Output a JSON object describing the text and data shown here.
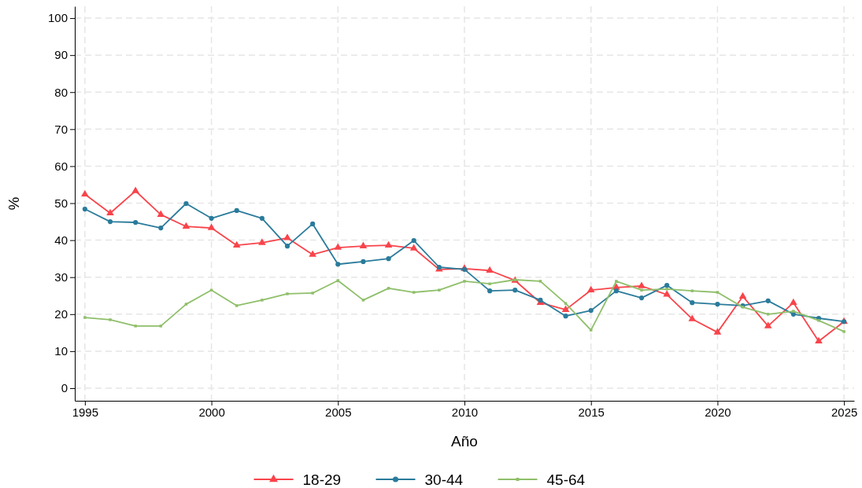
{
  "chart_data": {
    "type": "line",
    "xlabel": "Año",
    "ylabel": "%",
    "x": [
      1995,
      1996,
      1997,
      1998,
      1999,
      2000,
      2001,
      2002,
      2003,
      2004,
      2005,
      2006,
      2007,
      2008,
      2009,
      2010,
      2011,
      2012,
      2013,
      2014,
      2015,
      2016,
      2017,
      2018,
      2019,
      2020,
      2021,
      2022,
      2023,
      2024,
      2025
    ],
    "xlim": [
      1994.6,
      2025.4
    ],
    "xticks": [
      1995,
      2000,
      2005,
      2010,
      2015,
      2020,
      2025
    ],
    "ylim": [
      -3.4,
      103.2
    ],
    "yticks": [
      0,
      10,
      20,
      30,
      40,
      50,
      60,
      70,
      80,
      90,
      100
    ],
    "grid": true,
    "legend": "bottom",
    "line_style": "solid",
    "series": [
      {
        "name": "18-29",
        "color": "#f8444b",
        "marker": "triangle",
        "values": [
          52.4,
          47.3,
          53.3,
          46.9,
          43.7,
          43.3,
          38.6,
          39.3,
          40.6,
          36.1,
          38.0,
          38.4,
          38.6,
          37.8,
          32.1,
          32.3,
          31.8,
          29.1,
          23.1,
          21.2,
          26.5,
          27.2,
          27.6,
          25.3,
          18.7,
          15.1,
          24.8,
          16.8,
          23.1,
          12.7,
          18.0
        ]
      },
      {
        "name": "30-44",
        "color": "#2a7b9b",
        "marker": "circle",
        "values": [
          48.4,
          45.0,
          44.8,
          43.3,
          49.9,
          45.9,
          48.0,
          45.9,
          38.4,
          44.4,
          33.5,
          34.2,
          35.0,
          39.9,
          32.7,
          32.1,
          26.3,
          26.5,
          23.8,
          19.5,
          21.0,
          26.3,
          24.4,
          27.8,
          23.1,
          22.7,
          22.3,
          23.6,
          20.0,
          18.9,
          18.0
        ]
      },
      {
        "name": "45-64",
        "color": "#8fbf6a",
        "marker": "square",
        "values": [
          19.1,
          18.5,
          16.8,
          16.8,
          22.7,
          26.5,
          22.3,
          23.8,
          25.5,
          25.7,
          29.1,
          23.8,
          27.0,
          25.9,
          26.5,
          28.9,
          28.2,
          29.3,
          28.9,
          22.9,
          15.7,
          28.9,
          26.5,
          26.8,
          26.3,
          25.9,
          21.9,
          20.0,
          20.8,
          18.3,
          15.3
        ]
      }
    ]
  }
}
